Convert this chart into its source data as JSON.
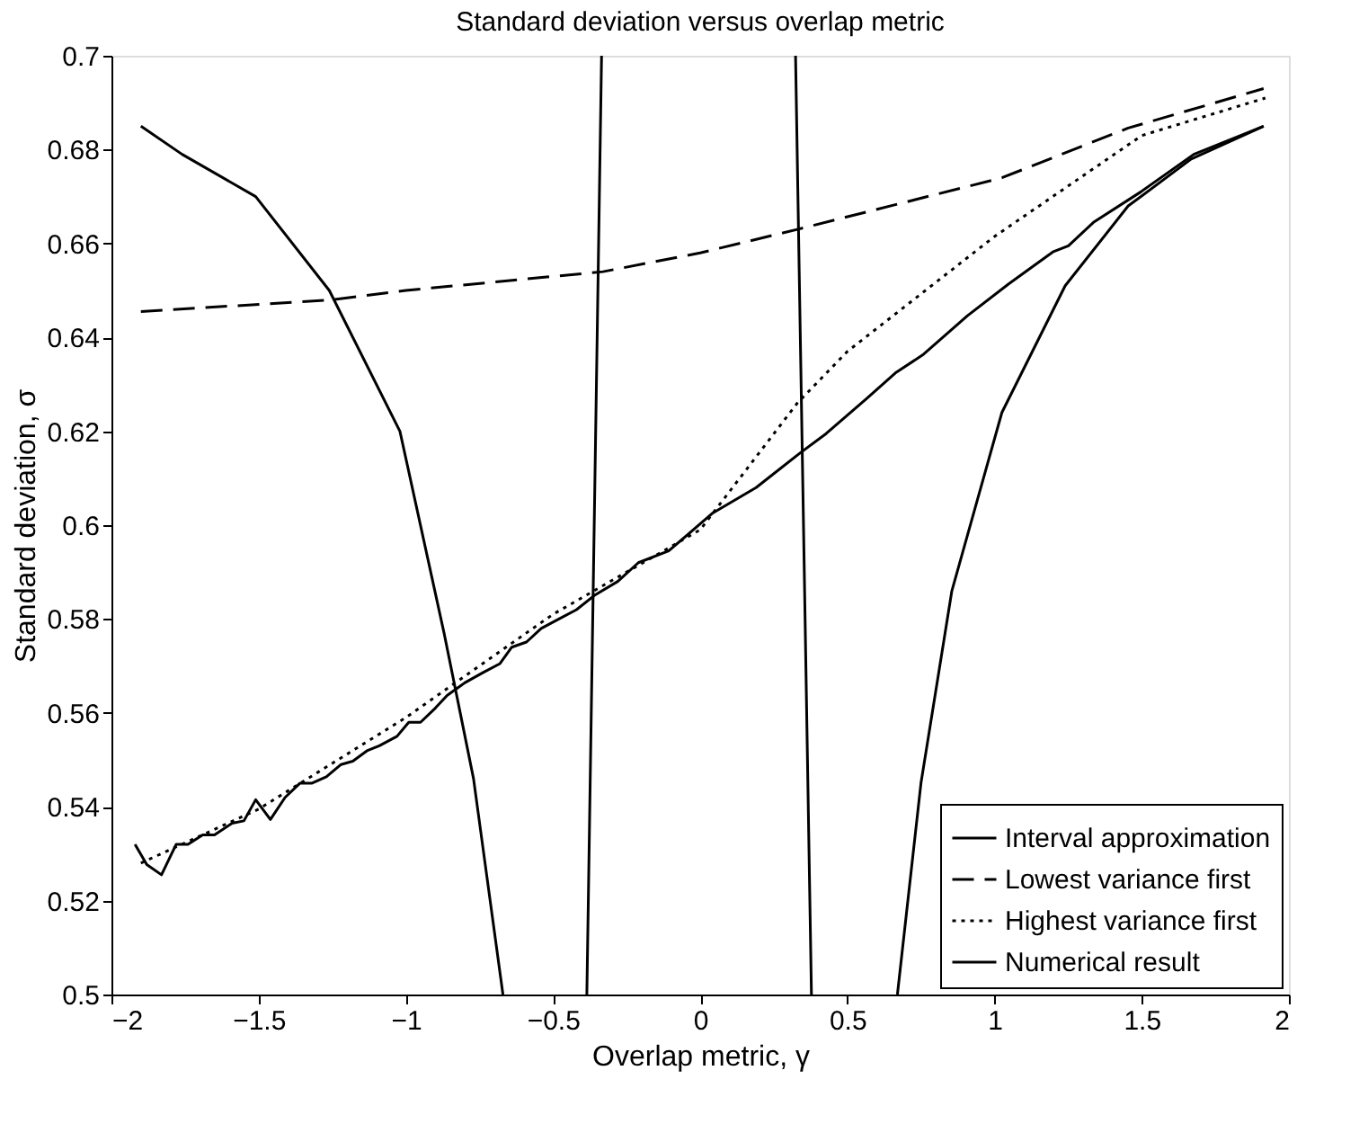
{
  "chart_data": {
    "type": "line",
    "title": "Standard deviation versus overlap metric",
    "xlabel": "Overlap metric, γ",
    "ylabel": "Standard deviation, σ",
    "xlim": [
      -2,
      2
    ],
    "ylim": [
      0.5,
      0.7
    ],
    "xticks": [
      -2,
      -1.5,
      -1,
      -0.5,
      0,
      0.5,
      1,
      1.5,
      2
    ],
    "yticks": [
      0.5,
      0.52,
      0.54,
      0.56,
      0.58,
      0.6,
      0.62,
      0.64,
      0.66,
      0.68,
      0.7
    ],
    "grid": false,
    "legend": "bottom right",
    "marker": "none",
    "series": [
      {
        "name": "Interval approximation",
        "color": "#000000",
        "line_style": "solid",
        "x": [
          -1.9,
          -1.76,
          -1.51,
          -1.26,
          -1.02,
          -0.87,
          -0.77,
          -0.67,
          -0.5,
          -0.385,
          -0.335,
          0,
          0.324,
          0.378,
          0.5,
          0.67,
          0.75,
          0.855,
          1.025,
          1.24,
          1.454,
          1.668,
          1.914
        ],
        "values": [
          0.685,
          0.679,
          0.67,
          0.65,
          0.62,
          0.577,
          0.546,
          0.5,
          null,
          0.5,
          0.7,
          null,
          0.7,
          0.5,
          null,
          0.5,
          0.545,
          0.586,
          0.624,
          0.651,
          0.668,
          0.678,
          0.685
        ]
      },
      {
        "name": "Lowest variance first",
        "color": "#000000",
        "line_style": "dashed",
        "x": [
          -1.9,
          -1.25,
          -1,
          -0.33,
          0,
          0.33,
          1.025,
          1.454,
          1.914
        ],
        "values": [
          0.6455,
          0.648,
          0.65,
          0.654,
          0.658,
          0.663,
          0.674,
          0.6846,
          0.693
        ]
      },
      {
        "name": "Highest variance first",
        "color": "#000000",
        "line_style": "dotted",
        "x": [
          -1.9,
          -1.5,
          -1,
          -0.5,
          0,
          0.33,
          0.5,
          1,
          1.5,
          1.92
        ],
        "values": [
          0.528,
          0.5395,
          0.559,
          0.581,
          0.599,
          0.626,
          0.637,
          0.6615,
          0.683,
          0.691
        ]
      },
      {
        "name": "Numerical result",
        "color": "#000000",
        "line_style": "solid",
        "x": [
          -1.92,
          -1.88,
          -1.83,
          -1.78,
          -1.74,
          -1.69,
          -1.65,
          -1.59,
          -1.55,
          -1.51,
          -1.46,
          -1.41,
          -1.36,
          -1.32,
          -1.27,
          -1.22,
          -1.18,
          -1.13,
          -1.09,
          -1.03,
          -0.99,
          -0.95,
          -0.9,
          -0.86,
          -0.8,
          -0.74,
          -0.68,
          -0.64,
          -0.59,
          -0.54,
          -0.48,
          -0.42,
          -0.36,
          -0.28,
          -0.21,
          -0.107,
          0.043,
          0.19,
          0.34,
          0.428,
          0.566,
          0.663,
          0.759,
          0.908,
          1.048,
          1.198,
          1.251,
          1.336,
          1.497,
          1.677,
          1.914
        ],
        "values": [
          0.532,
          0.5277,
          0.5255,
          0.532,
          0.532,
          0.534,
          0.534,
          0.5365,
          0.537,
          0.5415,
          0.5373,
          0.542,
          0.545,
          0.545,
          0.5464,
          0.549,
          0.5497,
          0.552,
          0.553,
          0.555,
          0.558,
          0.558,
          0.561,
          0.5637,
          0.5664,
          0.5685,
          0.5705,
          0.574,
          0.5751,
          0.578,
          0.58,
          0.582,
          0.585,
          0.588,
          0.592,
          0.5945,
          0.6026,
          0.608,
          0.6154,
          0.6195,
          0.627,
          0.6324,
          0.6364,
          0.6446,
          0.6514,
          0.6582,
          0.6595,
          0.6645,
          0.671,
          0.679,
          0.685
        ]
      }
    ]
  }
}
